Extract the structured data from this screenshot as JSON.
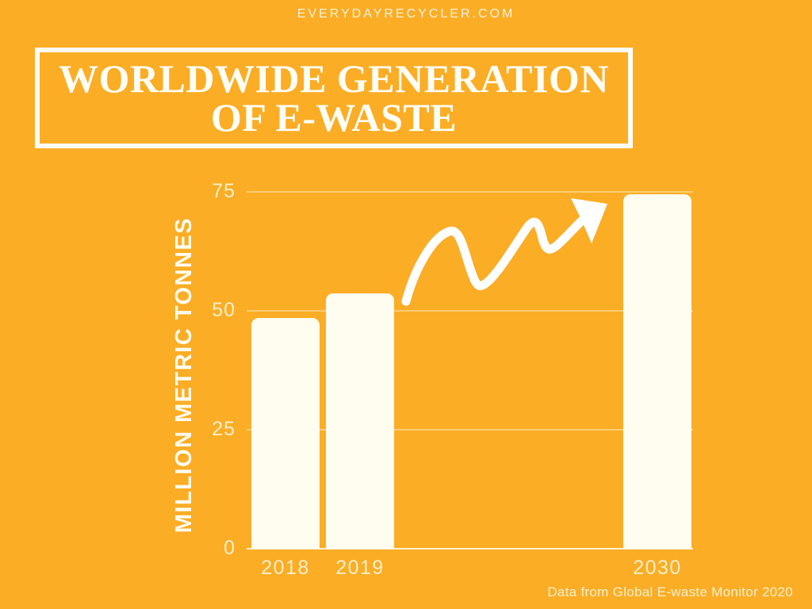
{
  "page": {
    "banner": "EVERYDAYRECYCLER.COM",
    "title_line1": "WORLDWIDE GENERATION",
    "title_line2": "OF E-WASTE",
    "attribution": "Data from Global E-waste Monitor 2020"
  },
  "colors": {
    "background": "#FBAD26",
    "bar_fill": "#FFFDF0",
    "title_text": "#FFFEF6",
    "muted_label": "#F8EFC9",
    "gridline": "#FFFCEE",
    "arrow": "#FFFFFF"
  },
  "chart_data": {
    "type": "bar",
    "title": "Worldwide Generation of E-Waste",
    "categories": [
      "2018",
      "2019",
      "2030"
    ],
    "values": [
      48.5,
      53.6,
      74.5
    ],
    "ylabel": "MILLION METRIC TONNES",
    "xlabel": "",
    "yticks": [
      0,
      25,
      50,
      75
    ],
    "ylim": [
      0,
      75
    ],
    "grid": true,
    "legend": false,
    "annotations": [
      "hand-drawn curved arrow rising from the 2019 bar toward the 2030 bar"
    ]
  }
}
